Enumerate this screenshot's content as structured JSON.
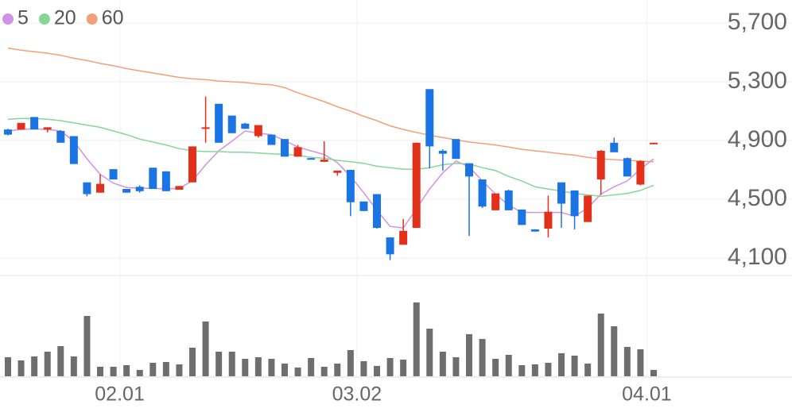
{
  "chart_data": {
    "type": "candlestick",
    "categories": [
      null,
      null,
      null,
      null,
      null,
      null,
      null,
      null,
      "02.01",
      null,
      null,
      null,
      null,
      null,
      null,
      null,
      null,
      null,
      null,
      null,
      null,
      null,
      null,
      null,
      null,
      null,
      "03.02",
      null,
      null,
      null,
      null,
      null,
      null,
      null,
      null,
      null,
      null,
      null,
      null,
      null,
      null,
      null,
      null,
      null,
      null,
      null,
      null,
      null,
      "04.01",
      null
    ],
    "open": [
      4975,
      4975,
      5060,
      4975,
      4965,
      4930,
      4615,
      4545,
      4705,
      4570,
      4585,
      4715,
      4690,
      4565,
      4615,
      4980,
      5150,
      5070,
      5015,
      4930,
      4940,
      4910,
      4790,
      4780,
      4755,
      4680,
      4700,
      4485,
      4535,
      4240,
      4190,
      4305,
      5250,
      4830,
      4910,
      4745,
      4635,
      4425,
      4560,
      4430,
      4295,
      4300,
      4615,
      4560,
      4345,
      4635,
      4885,
      4780,
      4600,
      4880
    ],
    "high": [
      4980,
      5020,
      5060,
      4990,
      4970,
      4930,
      4615,
      4670,
      4705,
      4570,
      4595,
      4715,
      4690,
      4590,
      4860,
      5200,
      5150,
      5070,
      5020,
      5005,
      4940,
      4910,
      4870,
      4780,
      4895,
      4695,
      4700,
      4485,
      4535,
      4240,
      4365,
      4885,
      5250,
      4840,
      4910,
      4745,
      4635,
      4540,
      4565,
      4430,
      4295,
      4525,
      4615,
      4560,
      4525,
      4835,
      4920,
      4785,
      4765,
      4885
    ],
    "low": [
      4935,
      4975,
      4975,
      4955,
      4885,
      4740,
      4520,
      4545,
      4635,
      4545,
      4545,
      4570,
      4555,
      4565,
      4615,
      4885,
      4885,
      4950,
      4980,
      4920,
      4870,
      4790,
      4790,
      4770,
      4755,
      4660,
      4385,
      4420,
      4300,
      4085,
      4190,
      4305,
      4710,
      4695,
      4775,
      4250,
      4440,
      4425,
      4425,
      4325,
      4280,
      4240,
      4305,
      4295,
      4345,
      4530,
      4820,
      4655,
      4595,
      4880
    ],
    "close": [
      4940,
      5020,
      4975,
      4990,
      4885,
      4740,
      4535,
      4605,
      4635,
      4545,
      4555,
      4570,
      4555,
      4590,
      4860,
      4990,
      4885,
      4950,
      4980,
      5005,
      4870,
      4790,
      4855,
      4770,
      4770,
      4695,
      4480,
      4420,
      4305,
      4125,
      4285,
      4885,
      4860,
      4810,
      4775,
      4655,
      4450,
      4540,
      4425,
      4325,
      4280,
      4415,
      4470,
      4385,
      4525,
      4830,
      4820,
      4655,
      4760,
      4885
    ],
    "up_color": "#e3301b",
    "down_color": "#1b74e4",
    "series": [
      {
        "name": "5",
        "color": "#d291e6",
        "values": [
          4965,
          4975,
          4980,
          4975,
          4965,
          4895,
          4775,
          4670,
          4610,
          4580,
          4575,
          4575,
          4570,
          4575,
          4625,
          4735,
          4830,
          4895,
          4965,
          4950,
          4940,
          4900,
          4855,
          4830,
          4805,
          4750,
          4655,
          4545,
          4425,
          4315,
          4305,
          4435,
          4570,
          4680,
          4760,
          4720,
          4625,
          4535,
          4460,
          4410,
          4410,
          4410,
          4410,
          4385,
          4440,
          4535,
          4585,
          4625,
          4705,
          4775
        ]
      },
      {
        "name": "20",
        "color": "#86d69a",
        "values": [
          5045,
          5050,
          5050,
          5045,
          5035,
          5020,
          5005,
          4990,
          4965,
          4940,
          4910,
          4890,
          4870,
          4845,
          4830,
          4825,
          4825,
          4820,
          4820,
          4815,
          4810,
          4805,
          4800,
          4785,
          4780,
          4765,
          4755,
          4745,
          4725,
          4715,
          4705,
          4705,
          4715,
          4735,
          4745,
          4740,
          4715,
          4695,
          4655,
          4625,
          4585,
          4570,
          4555,
          4540,
          4530,
          4520,
          4530,
          4540,
          4560,
          4595
        ]
      },
      {
        "name": "60",
        "color": "#f2a07a",
        "values": [
          5530,
          5515,
          5505,
          5495,
          5480,
          5460,
          5445,
          5425,
          5410,
          5390,
          5375,
          5360,
          5345,
          5330,
          5320,
          5315,
          5305,
          5300,
          5295,
          5285,
          5280,
          5260,
          5225,
          5195,
          5165,
          5130,
          5100,
          5065,
          5035,
          5000,
          4975,
          4955,
          4935,
          4920,
          4905,
          4890,
          4880,
          4870,
          4855,
          4840,
          4830,
          4820,
          4810,
          4800,
          4785,
          4775,
          4770,
          4765,
          4760,
          4755
        ]
      }
    ],
    "ylim": [
      3981,
      5857
    ],
    "yticks": [
      {
        "value": 5700,
        "label": "5,700"
      },
      {
        "value": 5300,
        "label": "5,300"
      },
      {
        "value": 4900,
        "label": "4,900"
      },
      {
        "value": 4500,
        "label": "4,500"
      },
      {
        "value": 4100,
        "label": "4,100"
      }
    ],
    "volume": {
      "color": "#6e6e6e",
      "ylim": [
        0,
        100
      ],
      "values": [
        24,
        20,
        25,
        31,
        38,
        25,
        76,
        12,
        12,
        14,
        8,
        17,
        18,
        15,
        36,
        69,
        31,
        31,
        22,
        24,
        22,
        16,
        11,
        23,
        12,
        16,
        33,
        19,
        13,
        23,
        21,
        93,
        60,
        31,
        24,
        53,
        47,
        22,
        27,
        14,
        15,
        17,
        29,
        26,
        16,
        79,
        63,
        37,
        34,
        8
      ]
    },
    "grid": true
  }
}
